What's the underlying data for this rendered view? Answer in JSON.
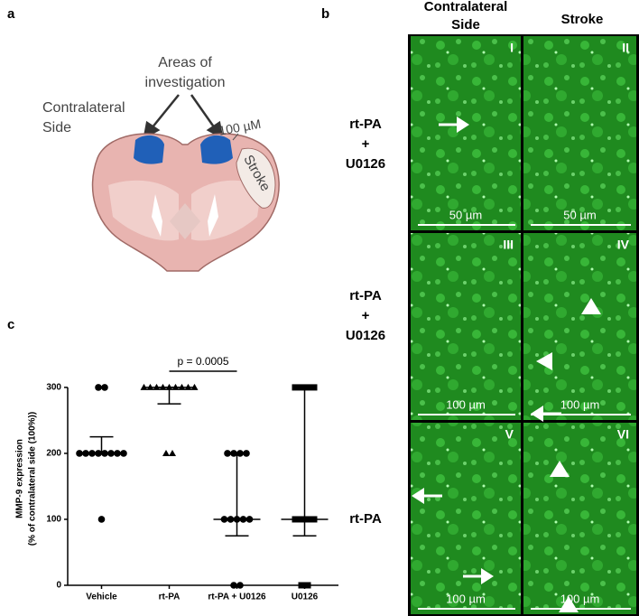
{
  "panel_a": {
    "letter": "a",
    "areas_label": [
      "Areas of",
      "investigation"
    ],
    "side_label": [
      "Contralateral",
      "Side"
    ],
    "scale_label": "100 µM",
    "stroke_label": "Stroke"
  },
  "panel_b": {
    "letter": "b",
    "column_headers": [
      [
        "Contralateral",
        "Side"
      ],
      [
        "Stroke"
      ]
    ],
    "row_labels": [
      [
        "rt-PA",
        "+",
        "U0126"
      ],
      [
        "rt-PA",
        "+",
        "U0126"
      ],
      [
        "rt-PA"
      ]
    ],
    "images": [
      {
        "numeral": "I",
        "scale": "50 µm"
      },
      {
        "numeral": "II",
        "scale": "50 µm"
      },
      {
        "numeral": "III",
        "scale": "100 µm"
      },
      {
        "numeral": "IV",
        "scale": "100 µm"
      },
      {
        "numeral": "V",
        "scale": "100 µm"
      },
      {
        "numeral": "VI",
        "scale": "100 µm"
      }
    ]
  },
  "chart_data": {
    "type": "dot",
    "letter": "c",
    "y_label": [
      "MMP-9 expression",
      "(% of contralateral side (100%))"
    ],
    "annotation": "p = 0.0005",
    "ylim": [
      0,
      330
    ],
    "yticks": [
      0,
      100,
      200,
      300
    ],
    "groups": [
      {
        "name": "Vehicle",
        "marker": "circle",
        "values": [
          300,
          300,
          200,
          200,
          200,
          200,
          200,
          200,
          200,
          200,
          100
        ],
        "median": 200,
        "whisker_low": 200,
        "whisker_high": 225
      },
      {
        "name": "rt-PA",
        "marker": "triangle",
        "values": [
          300,
          300,
          300,
          300,
          300,
          300,
          300,
          300,
          300,
          200,
          200
        ],
        "median": 300,
        "whisker_low": 275,
        "whisker_high": 300
      },
      {
        "name": "rt-PA + U0126",
        "marker": "circle",
        "values": [
          0,
          0,
          100,
          100,
          100,
          100,
          100,
          200,
          200,
          200,
          200
        ],
        "median": 100,
        "whisker_low": 75,
        "whisker_high": 200
      },
      {
        "name": "U0126",
        "marker": "square",
        "values": [
          0,
          0,
          100,
          100,
          100,
          100,
          300,
          300,
          300,
          300
        ],
        "median": 100,
        "whisker_low": 75,
        "whisker_high": 300
      }
    ]
  }
}
